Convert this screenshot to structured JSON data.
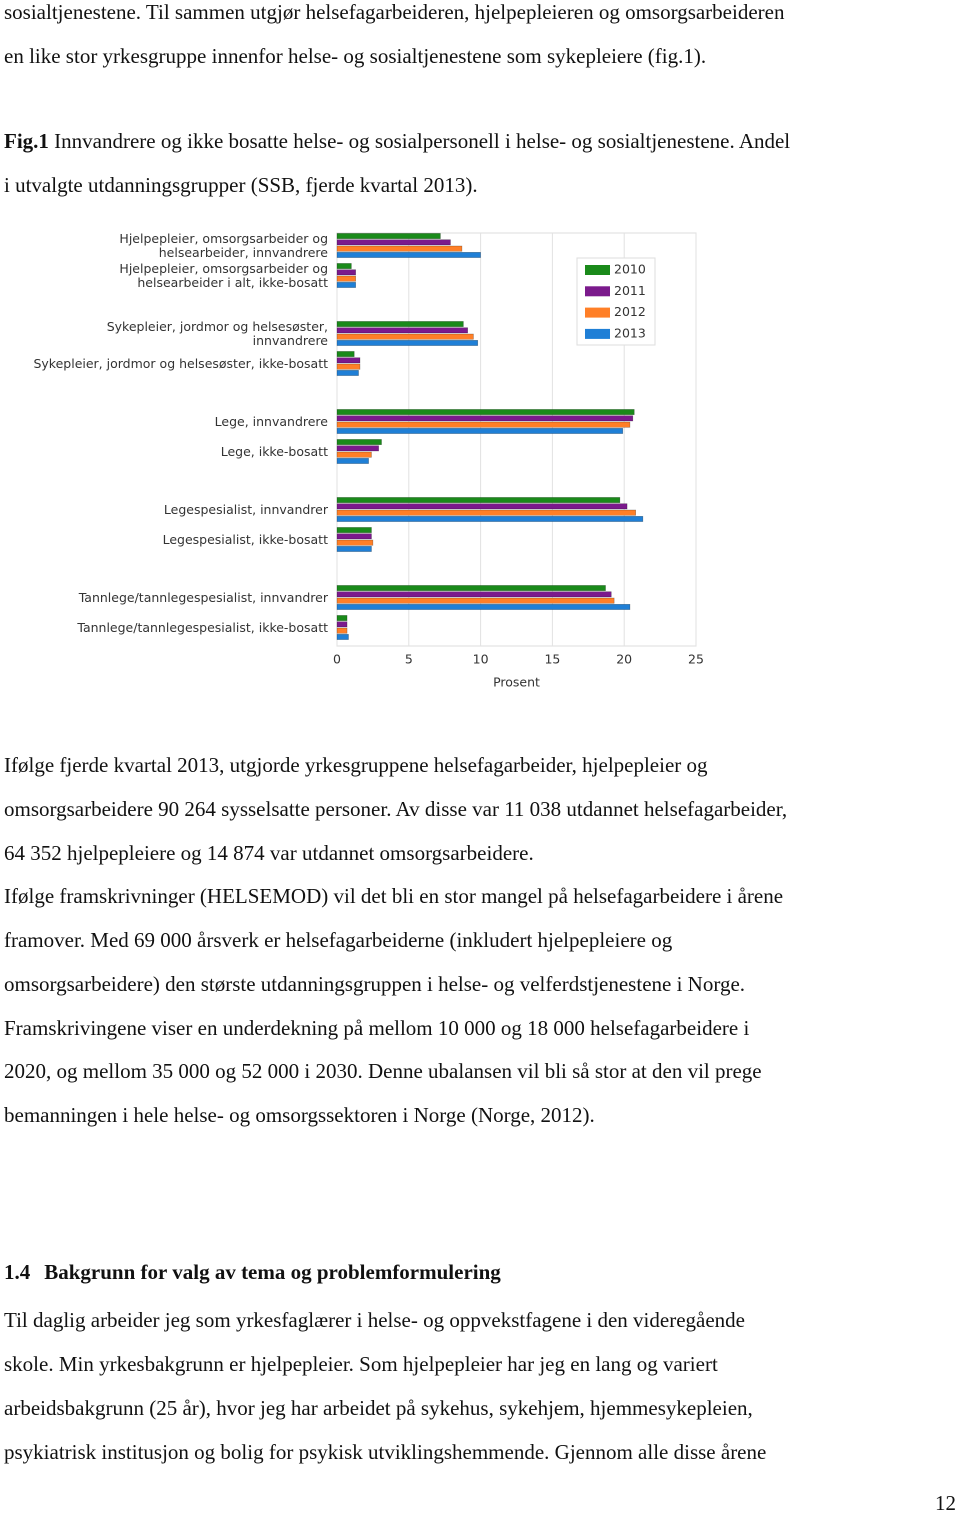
{
  "document": {
    "intro_lines": [
      "sosialtjenestene. Til sammen utgjør helsefagarbeideren, hjelpepleieren og omsorgsarbeideren",
      "en like stor yrkesgruppe innenfor helse- og sosialtjenestene som sykepleiere (fig.1)."
    ],
    "figure_caption": {
      "label": "Fig.1",
      "lines": [
        "Innvandrere og ikke bosatte helse- og sosialpersonell i helse- og sosialtjenestene. Andel",
        "i utvalgte utdanningsgrupper (SSB, fjerde kvartal 2013)."
      ]
    },
    "paragraph_lines": [
      "Ifølge fjerde kvartal 2013, utgjorde yrkesgruppene helsefagarbeider, hjelpepleier og",
      "omsorgsarbeidere 90 264 sysselsatte personer. Av disse var 11 038 utdannet helsefagarbeider,",
      "64 352 hjelpepleiere og 14 874 var utdannet omsorgsarbeidere.",
      "Ifølge framskrivninger (HELSEMOD) vil det bli en stor mangel på helsefagarbeidere i årene",
      "framover. Med 69 000 årsverk er helsefagarbeiderne (inkludert hjelpepleiere og",
      "omsorgsarbeidere) den største utdanningsgruppen i helse- og velferdstjenestene i Norge.",
      "Framskrivingene viser en underdekning på mellom 10 000 og 18 000 helsefagarbeidere i",
      "2020, og mellom 35 000 og 52 000 i 2030. Denne ubalansen vil bli så stor at den vil prege",
      "bemanningen i hele helse- og omsorgssektoren i Norge (Norge, 2012)."
    ],
    "heading": {
      "number": "1.4",
      "title": "Bakgrunn for valg av tema og problemformulering"
    },
    "paragraph2_lines": [
      "Til daglig arbeider jeg som yrkesfaglærer i helse- og oppvekstfagene i den videregående",
      "skole. Min yrkesbakgrunn er hjelpepleier. Som hjelpepleier har jeg en lang og variert",
      "arbeidsbakgrunn (25 år), hvor jeg har arbeidet på sykehus, sykehjem, hjemmesykepleien,",
      "psykiatrisk institusjon og bolig for psykisk utviklingshemmende. Gjennom alle disse årene"
    ],
    "page_number": "12"
  },
  "chart_data": {
    "type": "bar",
    "orientation": "horizontal",
    "categories": [
      "Hjelpepleier, omsorgsarbeider og\nhelsearbeider, innvandrere",
      "Hjelpepleier, omsorgsarbeider og\nhelsearbeider i alt, ikke-bosatt",
      "Sykepleier, jordmor og helsesøster,\ninnvandrere",
      "Sykepleier, jordmor og helsesøster, ikke-bosatt",
      "Lege, innvandrere",
      "Lege, ikke-bosatt",
      "Legespesialist, innvandrer",
      "Legespesialist, ikke-bosatt",
      "Tannlege/tannlegespesialist, innvandrer",
      "Tannlege/tannlegespesialist, ikke-bosatt"
    ],
    "series": [
      {
        "name": "2010",
        "color": "#1a8a1a",
        "values": [
          7.2,
          1.0,
          8.8,
          1.2,
          20.7,
          3.1,
          19.7,
          2.4,
          18.7,
          0.7
        ]
      },
      {
        "name": "2011",
        "color": "#7b1a8c",
        "values": [
          7.9,
          1.3,
          9.1,
          1.6,
          20.6,
          2.9,
          20.2,
          2.4,
          19.1,
          0.7
        ]
      },
      {
        "name": "2012",
        "color": "#ff7f27",
        "values": [
          8.7,
          1.3,
          9.5,
          1.6,
          20.4,
          2.4,
          20.8,
          2.5,
          19.3,
          0.7
        ]
      },
      {
        "name": "2013",
        "color": "#1f7fd6",
        "values": [
          10.0,
          1.3,
          9.8,
          1.5,
          19.9,
          2.2,
          21.3,
          2.4,
          20.4,
          0.8
        ]
      }
    ],
    "xlim": [
      0,
      25
    ],
    "xticks": [
      0,
      5,
      10,
      15,
      20,
      25
    ],
    "xlabel": "Prosent",
    "grid": true,
    "legend": "upper right"
  }
}
